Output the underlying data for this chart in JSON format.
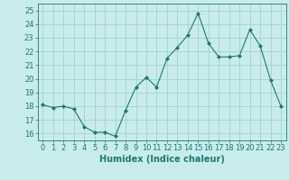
{
  "x": [
    0,
    1,
    2,
    3,
    4,
    5,
    6,
    7,
    8,
    9,
    10,
    11,
    12,
    13,
    14,
    15,
    16,
    17,
    18,
    19,
    20,
    21,
    22,
    23
  ],
  "y": [
    18.1,
    17.9,
    18.0,
    17.8,
    16.5,
    16.1,
    16.1,
    15.8,
    17.7,
    19.4,
    20.1,
    19.4,
    21.5,
    22.3,
    23.2,
    24.8,
    22.6,
    21.6,
    21.6,
    21.7,
    23.6,
    22.4,
    19.9,
    18.0
  ],
  "line_color": "#1a7a6e",
  "marker": "D",
  "marker_size": 2,
  "bg_color": "#c8ecec",
  "grid_color": "#a8d4d4",
  "xlabel": "Humidex (Indice chaleur)",
  "xlim": [
    -0.5,
    23.5
  ],
  "ylim": [
    15.5,
    25.5
  ],
  "yticks": [
    16,
    17,
    18,
    19,
    20,
    21,
    22,
    23,
    24,
    25
  ],
  "xticks": [
    0,
    1,
    2,
    3,
    4,
    5,
    6,
    7,
    8,
    9,
    10,
    11,
    12,
    13,
    14,
    15,
    16,
    17,
    18,
    19,
    20,
    21,
    22,
    23
  ],
  "tick_color": "#1a7a6e",
  "label_fontsize": 7,
  "tick_fontsize": 6
}
